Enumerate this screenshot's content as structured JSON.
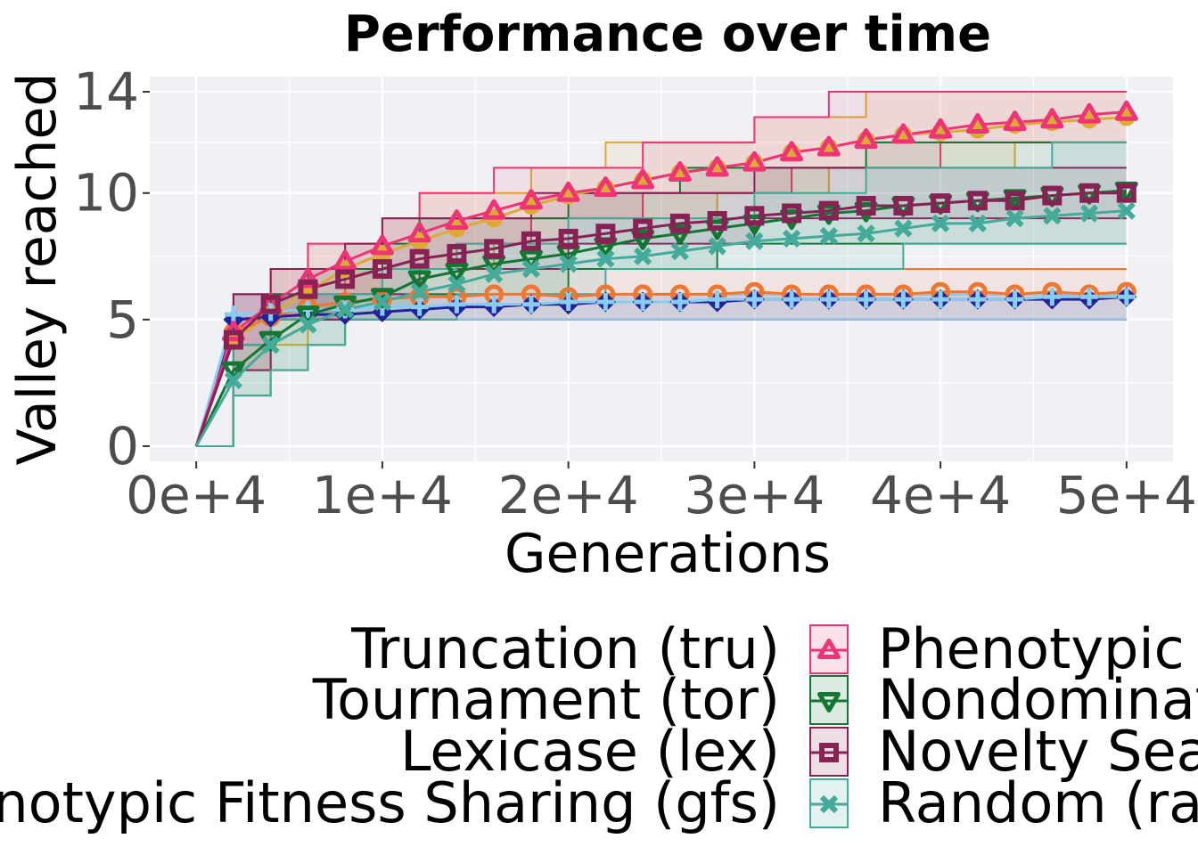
{
  "chart_data": {
    "type": "line",
    "title": "Performance over time",
    "xlabel": "Generations",
    "ylabel": "Valley reached",
    "xlim": [
      -2500,
      52500
    ],
    "ylim": [
      -0.6,
      14.6
    ],
    "xticks": [
      0,
      10000,
      20000,
      30000,
      40000,
      50000
    ],
    "xtick_labels": [
      "0e+4",
      "1e+4",
      "2e+4",
      "3e+4",
      "4e+4",
      "5e+4"
    ],
    "yticks": [
      0,
      5,
      10,
      14
    ],
    "ytick_labels": [
      "0",
      "5",
      "10",
      "14"
    ],
    "grid": true,
    "legend_position": "bottom",
    "x": [
      0,
      2000,
      4000,
      6000,
      8000,
      10000,
      12000,
      14000,
      16000,
      18000,
      20000,
      22000,
      24000,
      26000,
      28000,
      30000,
      32000,
      34000,
      36000,
      38000,
      40000,
      42000,
      44000,
      46000,
      48000,
      50000
    ],
    "series": [
      {
        "name": "Truncation (tru)",
        "color": "#ddaa33",
        "marker": "circle",
        "values": [
          0,
          4.2,
          5.2,
          6.1,
          7.0,
          7.6,
          8.1,
          8.6,
          9.0,
          9.5,
          9.9,
          10.2,
          10.5,
          10.8,
          11.0,
          11.2,
          11.6,
          11.8,
          12.1,
          12.3,
          12.4,
          12.5,
          12.7,
          12.8,
          12.9,
          13.0
        ],
        "lower": [
          0,
          3,
          4,
          5,
          6,
          7,
          7,
          7,
          8,
          8,
          9,
          9,
          9,
          9,
          10,
          10,
          10,
          11,
          11,
          11,
          11,
          11,
          12,
          12,
          12,
          12
        ],
        "upper": [
          0,
          6,
          7,
          8,
          8,
          9,
          10,
          10,
          10,
          11,
          11,
          12,
          12,
          12,
          12,
          13,
          13,
          13,
          14,
          14,
          14,
          14,
          14,
          14,
          14,
          14
        ]
      },
      {
        "name": "Tournament (tor)",
        "color": "#ee7733",
        "marker": "circle-open",
        "values": [
          0,
          4.5,
          5.1,
          5.5,
          5.7,
          5.8,
          5.9,
          5.9,
          6.0,
          6.0,
          5.9,
          6.0,
          6.0,
          6.0,
          6.0,
          6.1,
          6.0,
          6.0,
          6.0,
          6.0,
          6.1,
          6.1,
          6.0,
          6.1,
          6.0,
          6.1
        ],
        "lower": [
          0,
          4,
          5,
          5,
          5,
          5,
          5,
          5,
          5,
          5,
          5,
          5,
          5,
          5,
          5,
          5,
          5,
          5,
          5,
          5,
          5,
          5,
          5,
          5,
          5,
          5
        ],
        "upper": [
          0,
          5,
          6,
          6,
          7,
          7,
          7,
          7,
          7,
          7,
          7,
          7,
          7,
          7,
          7,
          7,
          7,
          7,
          7,
          7,
          7,
          7,
          7,
          7,
          7,
          7
        ]
      },
      {
        "name": "Lexicase (lex)",
        "color": "#222299",
        "marker": "diamond",
        "values": [
          0,
          5.0,
          5.1,
          5.2,
          5.2,
          5.3,
          5.4,
          5.5,
          5.5,
          5.6,
          5.6,
          5.7,
          5.7,
          5.7,
          5.7,
          5.8,
          5.8,
          5.8,
          5.8,
          5.8,
          5.8,
          5.8,
          5.8,
          5.8,
          5.8,
          5.9
        ],
        "lower": [
          0,
          4,
          5,
          5,
          5,
          5,
          5,
          5,
          5,
          5,
          5,
          5,
          5,
          5,
          5,
          5,
          5,
          5,
          5,
          5,
          5,
          5,
          5,
          5,
          5,
          5
        ],
        "upper": [
          0,
          6,
          6,
          6,
          6,
          6,
          6,
          6,
          6,
          6,
          6,
          6,
          6,
          6,
          6,
          6,
          6,
          6,
          6,
          6,
          6,
          6,
          6,
          6,
          6,
          6
        ]
      },
      {
        "name": "Genotypic Fitness Sharing (gfs)",
        "color": "#88ccee",
        "marker": "plus",
        "values": [
          0,
          5.2,
          5.3,
          5.4,
          5.4,
          5.5,
          5.5,
          5.6,
          5.6,
          5.6,
          5.7,
          5.7,
          5.7,
          5.7,
          5.8,
          5.8,
          5.8,
          5.8,
          5.8,
          5.8,
          5.8,
          5.8,
          5.8,
          5.9,
          5.9,
          5.9
        ],
        "lower": [
          0,
          4,
          5,
          5,
          5,
          5,
          5,
          5,
          5,
          5,
          5,
          5,
          5,
          5,
          5,
          5,
          5,
          5,
          5,
          5,
          5,
          5,
          5,
          5,
          5,
          5
        ],
        "upper": [
          0,
          6,
          6,
          6,
          6,
          6,
          6,
          6,
          6,
          6,
          6,
          6,
          6,
          6,
          6,
          6,
          6,
          6,
          6,
          6,
          6,
          6,
          6,
          6,
          6,
          6
        ]
      },
      {
        "name": "Phenotypic Fitness Sharing (pfs)",
        "color": "#ee3377",
        "marker": "triangle-up",
        "values": [
          0,
          4.5,
          5.6,
          6.6,
          7.3,
          7.9,
          8.4,
          8.9,
          9.3,
          9.7,
          10.0,
          10.2,
          10.5,
          10.8,
          11.0,
          11.2,
          11.6,
          11.8,
          12.1,
          12.3,
          12.5,
          12.7,
          12.8,
          12.9,
          13.1,
          13.2
        ],
        "lower": [
          0,
          3,
          5,
          5,
          6,
          7,
          7,
          8,
          8,
          9,
          9,
          9,
          10,
          10,
          10,
          10,
          11,
          11,
          11,
          11,
          12,
          12,
          12,
          12,
          12,
          12
        ],
        "upper": [
          0,
          6,
          7,
          8,
          8,
          9,
          10,
          10,
          11,
          11,
          11,
          11,
          12,
          12,
          12,
          13,
          13,
          14,
          14,
          14,
          14,
          14,
          14,
          14,
          14,
          14
        ]
      },
      {
        "name": "Nondominated Sorting (nds)",
        "color": "#117733",
        "marker": "triangle-down",
        "values": [
          0,
          3.0,
          4.2,
          5.2,
          5.6,
          5.9,
          6.6,
          6.9,
          7.2,
          7.4,
          7.6,
          7.9,
          8.2,
          8.4,
          8.6,
          8.8,
          9.0,
          9.2,
          9.3,
          9.5,
          9.6,
          9.7,
          9.8,
          9.9,
          10.0,
          10.1
        ],
        "lower": [
          0,
          2,
          3,
          4,
          5,
          5,
          6,
          6,
          6,
          6,
          7,
          7,
          7,
          7,
          8,
          8,
          8,
          8,
          8,
          8,
          8,
          8,
          8,
          8,
          8,
          8
        ],
        "upper": [
          0,
          4,
          6,
          7,
          7,
          8,
          9,
          9,
          9,
          9,
          10,
          10,
          10,
          11,
          11,
          11,
          11,
          11,
          12,
          12,
          12,
          12,
          12,
          12,
          12,
          12
        ]
      },
      {
        "name": "Novelty Search (nov)",
        "color": "#882255",
        "marker": "square-open",
        "values": [
          0,
          4.2,
          5.6,
          6.2,
          6.6,
          7.0,
          7.4,
          7.6,
          7.8,
          8.1,
          8.2,
          8.4,
          8.6,
          8.8,
          8.9,
          9.1,
          9.2,
          9.3,
          9.5,
          9.5,
          9.6,
          9.7,
          9.7,
          9.9,
          10.0,
          10.0
        ],
        "lower": [
          0,
          3,
          5,
          5,
          6,
          6,
          7,
          7,
          7,
          7,
          8,
          8,
          8,
          8,
          8,
          9,
          9,
          9,
          9,
          9,
          9,
          9,
          9,
          9,
          9,
          9
        ],
        "upper": [
          0,
          6,
          7,
          7,
          8,
          9,
          9,
          9,
          9,
          10,
          10,
          10,
          10,
          10,
          10,
          11,
          11,
          11,
          11,
          11,
          11,
          11,
          11,
          11,
          11,
          11
        ]
      },
      {
        "name": "Random (ran)",
        "color": "#44aa99",
        "marker": "x",
        "values": [
          0,
          2.6,
          4.0,
          4.8,
          5.4,
          5.7,
          6.1,
          6.4,
          6.8,
          7.0,
          7.2,
          7.4,
          7.5,
          7.7,
          7.9,
          8.1,
          8.2,
          8.3,
          8.4,
          8.6,
          8.8,
          8.8,
          9.0,
          9.1,
          9.2,
          9.3
        ],
        "lower": [
          0,
          2,
          3,
          4,
          5,
          5,
          5,
          6,
          6,
          6,
          6,
          7,
          7,
          7,
          7,
          7,
          7,
          7,
          7,
          8,
          8,
          8,
          8,
          8,
          8,
          8
        ],
        "upper": [
          0,
          4,
          5,
          6,
          6,
          7,
          7,
          8,
          8,
          8,
          9,
          9,
          9,
          9,
          9,
          10,
          10,
          10,
          11,
          11,
          11,
          11,
          11,
          12,
          12,
          12
        ]
      }
    ]
  }
}
